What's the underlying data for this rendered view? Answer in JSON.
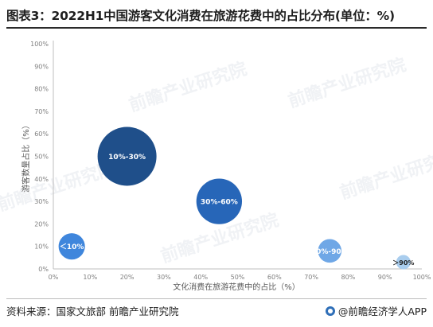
{
  "header": {
    "title": "图表3：2022H1中国游客文化消费在旅游花费中的占比分布(单位：%)"
  },
  "footer": {
    "source": "资料来源：国家文旅部 前瞻产业研究院",
    "brand": "@前瞻经济学人APP"
  },
  "watermark": {
    "text": "前瞻产业研究院"
  },
  "colors": {
    "bubble_dark": "#1f4f8a",
    "bubble_mid": "#2766b8",
    "bubble_light": "#3f86dc",
    "bubble_pale": "#6fa7e6",
    "bubble_faint": "#a9cdee",
    "axis": "#bfbfbf",
    "tick_text": "#7f7f7f"
  },
  "chart_data": {
    "type": "scatter",
    "title": "",
    "xlabel": "文化消费在旅游花费中的占比（%）",
    "ylabel": "游客数量占比（%）",
    "xlim": [
      0,
      100
    ],
    "ylim": [
      0,
      100
    ],
    "x_ticks": [
      "0%",
      "10%",
      "20%",
      "30%",
      "40%",
      "50%",
      "60%",
      "70%",
      "80%",
      "90%",
      "100%"
    ],
    "y_ticks": [
      "0%",
      "10%",
      "20%",
      "30%",
      "40%",
      "50%",
      "60%",
      "70%",
      "80%",
      "90%",
      "100%"
    ],
    "grid": false,
    "points": [
      {
        "label": "＜10%",
        "x": 5,
        "y": 10,
        "size": 10,
        "color": "#3f86dc"
      },
      {
        "label": "10%-30%",
        "x": 20,
        "y": 50,
        "size": 50,
        "color": "#1f4f8a"
      },
      {
        "label": "30%-60%",
        "x": 45,
        "y": 30,
        "size": 30,
        "color": "#2766b8"
      },
      {
        "label": "60%-90%",
        "x": 75,
        "y": 8,
        "size": 8,
        "color": "#6fa7e6"
      },
      {
        "label": "＞90%",
        "x": 95,
        "y": 3,
        "size": 3,
        "color": "#a9cdee"
      }
    ]
  }
}
